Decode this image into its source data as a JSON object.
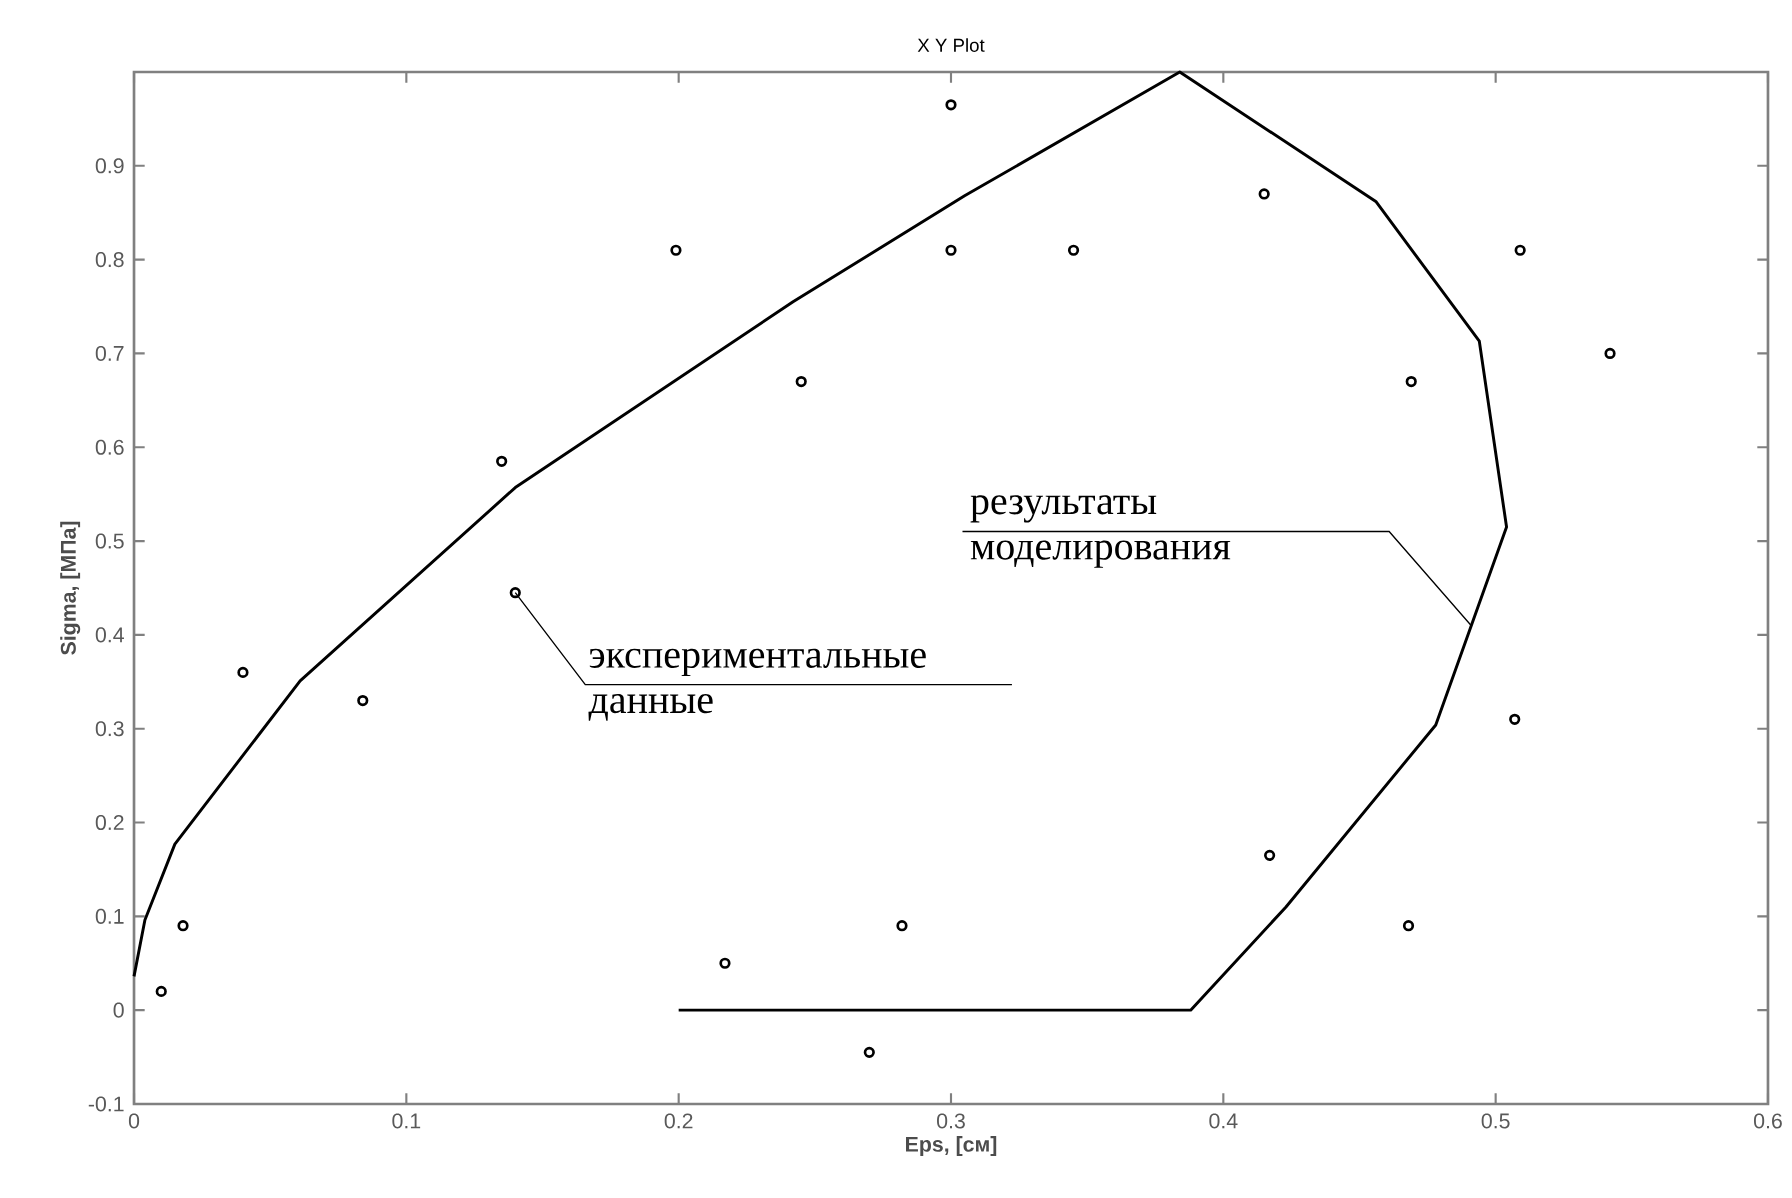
{
  "chart_data": {
    "type": "scatter",
    "title": "X Y Plot",
    "xlabel": "Eps, [см]",
    "ylabel": "Sigma, [МПа]",
    "xlim": [
      0,
      0.6
    ],
    "ylim": [
      -0.1,
      1.0
    ],
    "xticks": [
      0,
      0.1,
      0.2,
      0.3,
      0.4,
      0.5,
      0.6
    ],
    "yticks": [
      -0.1,
      0,
      0.1,
      0.2,
      0.3,
      0.4,
      0.5,
      0.6,
      0.7,
      0.8,
      0.9
    ],
    "grid": false,
    "series": [
      {
        "type": "scatter",
        "marker": "circle",
        "color": "#000000",
        "x": [
          0.01,
          0.018,
          0.04,
          0.084,
          0.135,
          0.14,
          0.199,
          0.245,
          0.3,
          0.3,
          0.345,
          0.415,
          0.469,
          0.509,
          0.542,
          0.507,
          0.417,
          0.468,
          0.217,
          0.282,
          0.27
        ],
        "values": [
          0.02,
          0.09,
          0.36,
          0.33,
          0.585,
          0.445,
          0.81,
          0.67,
          0.965,
          0.81,
          0.81,
          0.87,
          0.67,
          0.81,
          0.7,
          0.31,
          0.165,
          0.09,
          0.05,
          0.09,
          -0.045
        ]
      },
      {
        "type": "line",
        "marker": "none",
        "line_style": "solid",
        "color": "#000000",
        "x": [
          0,
          0.004,
          0.015,
          0.061,
          0.14,
          0.242,
          0.305,
          0.384,
          0.456,
          0.494,
          0.504,
          0.478,
          0.423,
          0.388,
          0.2
        ],
        "values": [
          0.036,
          0.096,
          0.177,
          0.351,
          0.557,
          0.755,
          0.868,
          1.0,
          0.862,
          0.713,
          0.515,
          0.304,
          0.11,
          0,
          0
        ]
      }
    ],
    "annotations": [
      {
        "text": "экспериментальные данные",
        "x": 0.14,
        "y": 0.445
      },
      {
        "text": "результаты моделирования",
        "x": 0.491,
        "y": 0.41
      }
    ]
  }
}
